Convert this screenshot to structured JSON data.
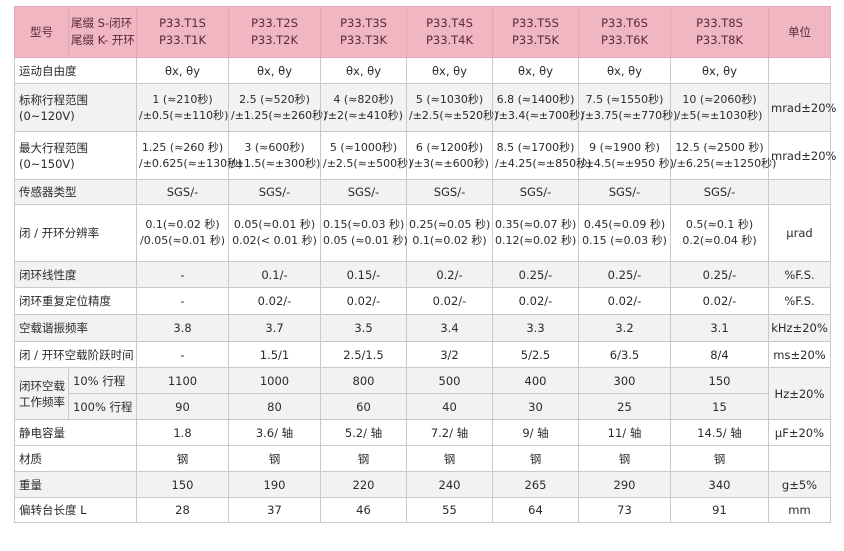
{
  "header": {
    "type_label": "型号",
    "suffix_line1": "尾缀 S-闭环",
    "suffix_line2": "尾缀 K- 开环",
    "models": [
      {
        "closed": "P33.T1S",
        "open": "P33.T1K"
      },
      {
        "closed": "P33.T2S",
        "open": "P33.T2K"
      },
      {
        "closed": "P33.T3S",
        "open": "P33.T3K"
      },
      {
        "closed": "P33.T4S",
        "open": "P33.T4K"
      },
      {
        "closed": "P33.T5S",
        "open": "P33.T5K"
      },
      {
        "closed": "P33.T6S",
        "open": "P33.T6K"
      },
      {
        "closed": "P33.T8S",
        "open": "P33.T8K"
      }
    ],
    "unit_label": "单位"
  },
  "rows": {
    "dof": {
      "label": "运动自由度",
      "values": [
        "θx, θy",
        "θx, θy",
        "θx, θy",
        "θx, θy",
        "θx, θy",
        "θx, θy",
        "θx, θy"
      ],
      "unit": ""
    },
    "nominal_range": {
      "label1": "标称行程范围",
      "label2": "(0~120V)",
      "line1": [
        "1 (≈210秒)",
        "2.5 (≈520秒)",
        "4 (≈820秒)",
        "5 (≈1030秒)",
        "6.8 (≈1400秒)",
        "7.5 (≈1550秒)",
        "10 (≈2060秒)"
      ],
      "line2": [
        "/±0.5(≈±110秒)",
        "/±1.25(≈±260秒)",
        "/±2(≈±410秒)",
        "/±2.5(≈±520秒)",
        "/±3.4(≈±700秒)",
        "/±3.75(≈±770秒)",
        "/±5(≈±1030秒)"
      ],
      "unit": "mrad±20%"
    },
    "max_range": {
      "label1": "最大行程范围",
      "label2": "(0~150V)",
      "line1": [
        "1.25 (≈260 秒)",
        "3 (≈600秒)",
        "5 (≈1000秒)",
        "6 (≈1200秒)",
        "8.5 (≈1700秒)",
        "9 (≈1900 秒)",
        "12.5 (≈2500 秒)"
      ],
      "line2": [
        "/±0.625(≈±130秒)",
        "/±1.5(≈±300秒)",
        "/±2.5(≈±500秒)",
        "/±3(≈±600秒)",
        "/±4.25(≈±850秒)",
        "/±4.5(≈±950 秒)",
        "/±6.25(≈±1250秒)"
      ],
      "unit": "mrad±20%"
    },
    "sensor": {
      "label": "传感器类型",
      "values": [
        "SGS/-",
        "SGS/-",
        "SGS/-",
        "SGS/-",
        "SGS/-",
        "SGS/-",
        "SGS/-"
      ],
      "unit": ""
    },
    "resolution": {
      "label": "闭 / 开环分辨率",
      "line1": [
        "0.1(≈0.02 秒)",
        "0.05(≈0.01 秒)",
        "0.15(≈0.03 秒)",
        "0.25(≈0.05 秒)",
        "0.35(≈0.07 秒)",
        "0.45(≈0.09 秒)",
        "0.5(≈0.1 秒)"
      ],
      "line2": [
        "/0.05(≈0.01 秒)",
        "0.02(< 0.01 秒)",
        "0.05 (≈0.01 秒)",
        "0.1(≈0.02 秒)",
        "0.12(≈0.02 秒)",
        "0.15 (≈0.03 秒)",
        "0.2(≈0.04 秒)"
      ],
      "unit": "μrad"
    },
    "linearity": {
      "label": "闭环线性度",
      "values": [
        "-",
        "0.1/-",
        "0.15/-",
        "0.2/-",
        "0.25/-",
        "0.25/-",
        "0.25/-"
      ],
      "unit": "%F.S."
    },
    "repeatability": {
      "label": "闭环重复定位精度",
      "values": [
        "-",
        "0.02/-",
        "0.02/-",
        "0.02/-",
        "0.02/-",
        "0.02/-",
        "0.02/-"
      ],
      "unit": "%F.S."
    },
    "resonance": {
      "label": "空载谐振频率",
      "values": [
        "3.8",
        "3.7",
        "3.5",
        "3.4",
        "3.3",
        "3.2",
        "3.1"
      ],
      "unit": "kHz±20%"
    },
    "step_time": {
      "label": "闭 / 开环空载阶跃时间",
      "values": [
        "-",
        "1.5/1",
        "2.5/1.5",
        "3/2",
        "5/2.5",
        "6/3.5",
        "8/4"
      ],
      "unit": "ms±20%"
    },
    "work_freq": {
      "label1": "闭环空载",
      "label2": "工作频率",
      "sub10": "10% 行程",
      "sub100": "100% 行程",
      "values10": [
        "1100",
        "1000",
        "800",
        "500",
        "400",
        "300",
        "150"
      ],
      "values100": [
        "90",
        "80",
        "60",
        "40",
        "30",
        "25",
        "15"
      ],
      "unit": "Hz±20%"
    },
    "capacitance": {
      "label": "静电容量",
      "values": [
        "1.8",
        "3.6/ 轴",
        "5.2/ 轴",
        "7.2/ 轴",
        "9/ 轴",
        "11/ 轴",
        "14.5/ 轴"
      ],
      "unit": "μF±20%"
    },
    "material": {
      "label": "材质",
      "values": [
        "钢",
        "钢",
        "钢",
        "钢",
        "钢",
        "钢",
        "钢"
      ],
      "unit": ""
    },
    "weight": {
      "label": "重量",
      "values": [
        "150",
        "190",
        "220",
        "240",
        "265",
        "290",
        "340"
      ],
      "unit": "g±5%"
    },
    "length": {
      "label": "偏转台长度 L",
      "values": [
        "28",
        "37",
        "46",
        "55",
        "64",
        "73",
        "91"
      ],
      "unit": "mm"
    }
  }
}
